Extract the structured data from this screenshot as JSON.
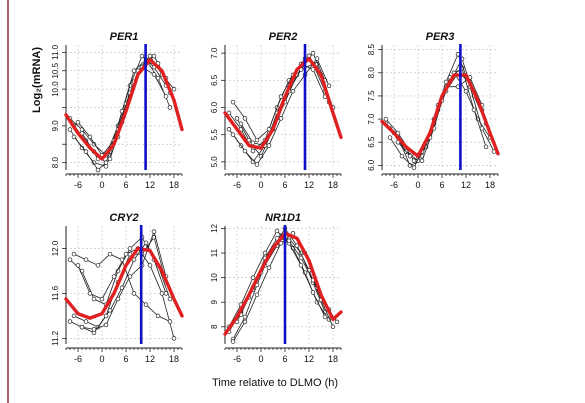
{
  "figure": {
    "ylabel": "Log₂(mRNA)",
    "xlabel": "Time relative to DLMO (h)"
  },
  "colors": {
    "fit_curve": "#e02020",
    "dlmo_line": "#1010c8",
    "individual": "#222222",
    "grid": "#c8c8c8",
    "left_rule": "#b05a6a"
  },
  "chart_data": [
    {
      "type": "line",
      "title": "PER1",
      "x_ticks": [
        -6,
        0,
        6,
        12,
        18
      ],
      "x_tick_labels": [
        "-6",
        "0",
        "6",
        "12",
        "18"
      ],
      "xlim": [
        -9,
        20
      ],
      "ylim": [
        7.8,
        11.2
      ],
      "y_ticks": [
        8.0,
        8.5,
        9.0,
        9.5,
        10.0,
        10.5,
        11.0
      ],
      "y_tick_labels": [
        "8.0",
        "",
        "9.0",
        "",
        "10.0",
        "10.5",
        "11.0"
      ],
      "vline_x": 10.9,
      "fit": {
        "x": [
          -9,
          -6,
          -3,
          0,
          3,
          6,
          9,
          12,
          15,
          18,
          20
        ],
        "y": [
          9.3,
          8.8,
          8.4,
          8.1,
          8.5,
          9.4,
          10.4,
          10.8,
          10.5,
          9.7,
          8.9
        ]
      },
      "individuals": [
        {
          "x": [
            -8,
            -5,
            -2,
            1,
            4,
            7,
            10,
            13,
            16
          ],
          "y": [
            9.2,
            8.9,
            8.5,
            8.2,
            9.0,
            10.1,
            10.9,
            10.6,
            10.1
          ]
        },
        {
          "x": [
            -7,
            -4,
            -1,
            2,
            5,
            8,
            11,
            14,
            17
          ],
          "y": [
            9.0,
            8.6,
            8.1,
            8.3,
            9.4,
            10.5,
            10.8,
            10.3,
            9.5
          ]
        },
        {
          "x": [
            -8,
            -5,
            -2,
            1,
            4,
            7,
            10,
            13,
            16
          ],
          "y": [
            8.9,
            8.4,
            8.0,
            7.9,
            8.7,
            9.8,
            10.6,
            10.9,
            10.3
          ]
        },
        {
          "x": [
            -6,
            -3,
            0,
            3,
            6,
            9,
            12,
            15,
            18
          ],
          "y": [
            9.1,
            8.7,
            8.2,
            8.6,
            9.6,
            10.5,
            10.9,
            10.4,
            10.0
          ]
        },
        {
          "x": [
            -7,
            -4,
            -1,
            2,
            5,
            8,
            11,
            14,
            17
          ],
          "y": [
            8.7,
            8.3,
            7.8,
            8.1,
            9.1,
            10.2,
            10.7,
            10.7,
            9.9
          ]
        },
        {
          "x": [
            -5,
            -2,
            1,
            4,
            7,
            10,
            13,
            16
          ],
          "y": [
            8.8,
            8.3,
            8.0,
            8.9,
            9.9,
            10.6,
            10.4,
            9.8
          ]
        }
      ]
    },
    {
      "type": "line",
      "title": "PER2",
      "x_ticks": [
        -6,
        0,
        6,
        12,
        18
      ],
      "x_tick_labels": [
        "-6",
        "0",
        "6",
        "12",
        "18"
      ],
      "xlim": [
        -9,
        20
      ],
      "ylim": [
        4.85,
        7.15
      ],
      "y_ticks": [
        5.0,
        5.5,
        6.0,
        6.5,
        7.0
      ],
      "y_tick_labels": [
        "5.0",
        "5.5",
        "6.0",
        "6.5",
        "7.0"
      ],
      "vline_x": 11.0,
      "fit": {
        "x": [
          -9,
          -6,
          -3,
          0,
          3,
          6,
          9,
          12,
          15,
          18,
          20
        ],
        "y": [
          5.9,
          5.6,
          5.3,
          5.25,
          5.6,
          6.2,
          6.7,
          6.9,
          6.6,
          5.9,
          5.45
        ]
      },
      "individuals": [
        {
          "x": [
            -8,
            -5,
            -2,
            1,
            4,
            7,
            10,
            13,
            16
          ],
          "y": [
            5.9,
            5.6,
            5.2,
            5.4,
            6.0,
            6.5,
            6.8,
            6.7,
            6.2
          ]
        },
        {
          "x": [
            -7,
            -4,
            -1,
            2,
            5,
            8,
            11,
            14,
            17
          ],
          "y": [
            6.1,
            5.8,
            5.4,
            5.6,
            6.2,
            6.6,
            6.9,
            6.8,
            6.1
          ]
        },
        {
          "x": [
            -8,
            -5,
            -2,
            1,
            4,
            7,
            10,
            13,
            16
          ],
          "y": [
            5.6,
            5.3,
            5.0,
            5.3,
            5.9,
            6.4,
            6.7,
            7.0,
            6.5
          ]
        },
        {
          "x": [
            -6,
            -3,
            0,
            3,
            6,
            9,
            12,
            15,
            18
          ],
          "y": [
            5.8,
            5.4,
            5.1,
            5.6,
            6.1,
            6.6,
            6.95,
            6.6,
            6.0
          ]
        },
        {
          "x": [
            -7,
            -4,
            -1,
            2,
            5,
            8,
            11,
            14,
            17
          ],
          "y": [
            5.5,
            5.2,
            4.95,
            5.3,
            5.8,
            6.3,
            6.6,
            6.9,
            6.4
          ]
        },
        {
          "x": [
            -5,
            -2,
            1,
            4,
            7,
            10,
            13,
            16
          ],
          "y": [
            5.7,
            5.35,
            5.3,
            5.8,
            6.3,
            6.7,
            6.8,
            6.3
          ]
        }
      ]
    },
    {
      "type": "line",
      "title": "PER3",
      "x_ticks": [
        -6,
        0,
        6,
        12,
        18
      ],
      "x_tick_labels": [
        "-6",
        "0",
        "6",
        "12",
        "18"
      ],
      "xlim": [
        -9,
        20
      ],
      "ylim": [
        5.9,
        8.6
      ],
      "y_ticks": [
        6.0,
        6.5,
        7.0,
        7.5,
        8.0,
        8.5
      ],
      "y_tick_labels": [
        "6.0",
        "6.5",
        "7.0",
        "7.5",
        "8.0",
        "8.5"
      ],
      "vline_x": 10.6,
      "fit": {
        "x": [
          -9,
          -6,
          -3,
          0,
          3,
          6,
          9,
          12,
          15,
          18,
          20
        ],
        "y": [
          6.95,
          6.7,
          6.4,
          6.2,
          6.7,
          7.5,
          7.95,
          7.95,
          7.4,
          6.7,
          6.25
        ]
      },
      "individuals": [
        {
          "x": [
            -8,
            -5,
            -2,
            1,
            4,
            7,
            10,
            13,
            16
          ],
          "y": [
            7.0,
            6.7,
            6.3,
            6.2,
            6.9,
            7.6,
            8.0,
            7.8,
            7.2
          ]
        },
        {
          "x": [
            -7,
            -4,
            -1,
            2,
            5,
            8,
            11,
            14,
            17
          ],
          "y": [
            6.8,
            6.5,
            6.1,
            6.4,
            7.2,
            7.8,
            8.3,
            7.5,
            6.9
          ]
        },
        {
          "x": [
            -8,
            -5,
            -2,
            1,
            4,
            7,
            10,
            13,
            16
          ],
          "y": [
            6.9,
            6.6,
            6.0,
            6.1,
            6.8,
            7.7,
            7.7,
            7.9,
            7.3
          ]
        },
        {
          "x": [
            -6,
            -3,
            0,
            3,
            6,
            9,
            12,
            15,
            18
          ],
          "y": [
            6.7,
            6.3,
            6.1,
            6.6,
            7.4,
            8.0,
            7.6,
            7.0,
            6.6
          ]
        },
        {
          "x": [
            -7,
            -4,
            -1,
            2,
            5,
            8,
            11,
            14,
            17
          ],
          "y": [
            6.6,
            6.2,
            5.95,
            6.5,
            7.3,
            7.9,
            8.1,
            7.2,
            6.4
          ]
        },
        {
          "x": [
            -5,
            -2,
            1,
            4,
            7,
            10,
            13,
            16,
            19
          ],
          "y": [
            6.5,
            6.2,
            6.3,
            7.0,
            7.8,
            8.4,
            7.7,
            6.8,
            6.3
          ]
        }
      ]
    },
    {
      "type": "line",
      "title": "CRY2",
      "x_ticks": [
        -6,
        0,
        6,
        12,
        18
      ],
      "x_tick_labels": [
        "-6",
        "0",
        "6",
        "12",
        "18"
      ],
      "xlim": [
        -9,
        20
      ],
      "ylim": [
        11.15,
        12.2
      ],
      "y_ticks": [
        11.2,
        11.6,
        12.0
      ],
      "y_tick_labels": [
        "11.2",
        "11.6",
        "12.0"
      ],
      "vline_x": 9.8,
      "fit": {
        "x": [
          -9,
          -6,
          -3,
          0,
          3,
          6,
          9,
          12,
          15,
          18,
          20
        ],
        "y": [
          11.55,
          11.42,
          11.38,
          11.42,
          11.6,
          11.85,
          12.0,
          11.98,
          11.8,
          11.55,
          11.4
        ]
      },
      "individuals": [
        {
          "x": [
            -8,
            -5,
            -2,
            1,
            4,
            7,
            10,
            13,
            16
          ],
          "y": [
            11.9,
            11.8,
            11.55,
            11.5,
            11.8,
            12.0,
            12.1,
            11.9,
            11.6
          ]
        },
        {
          "x": [
            -7,
            -4,
            -1,
            2,
            5,
            8,
            11,
            14,
            17
          ],
          "y": [
            11.4,
            11.35,
            11.3,
            11.45,
            11.65,
            11.9,
            12.05,
            11.85,
            11.55
          ]
        },
        {
          "x": [
            -8,
            -5,
            -2,
            1,
            4,
            7,
            10,
            13,
            16
          ],
          "y": [
            11.35,
            11.3,
            11.25,
            11.4,
            11.7,
            11.95,
            11.95,
            12.1,
            11.7
          ]
        },
        {
          "x": [
            -6,
            -3,
            0,
            3,
            6,
            9,
            12,
            15,
            18
          ],
          "y": [
            11.85,
            11.6,
            11.55,
            11.75,
            11.95,
            12.0,
            11.85,
            11.6,
            11.2
          ]
        },
        {
          "x": [
            -7,
            -4,
            -1,
            2,
            5,
            8,
            11,
            14,
            17
          ],
          "y": [
            11.95,
            11.9,
            11.85,
            11.95,
            11.9,
            11.6,
            11.5,
            11.4,
            11.35
          ]
        },
        {
          "x": [
            -5,
            -2,
            1,
            4,
            7,
            10,
            13,
            16
          ],
          "y": [
            11.3,
            11.28,
            11.32,
            11.55,
            11.75,
            11.85,
            12.15,
            11.75
          ]
        }
      ]
    },
    {
      "type": "line",
      "title": "NR1D1",
      "x_ticks": [
        -6,
        0,
        6,
        12,
        18
      ],
      "x_tick_labels": [
        "-6",
        "0",
        "6",
        "12",
        "18"
      ],
      "xlim": [
        -9,
        20
      ],
      "ylim": [
        7.3,
        12.1
      ],
      "y_ticks": [
        8,
        9,
        10,
        11,
        12
      ],
      "y_tick_labels": [
        "8",
        "9",
        "10",
        "11",
        "12"
      ],
      "vline_x": 6.0,
      "fit": {
        "x": [
          -9,
          -6,
          -3,
          0,
          3,
          6,
          9,
          12,
          15,
          18,
          20
        ],
        "y": [
          7.7,
          8.4,
          9.3,
          10.3,
          11.2,
          11.8,
          11.6,
          10.7,
          9.3,
          8.3,
          8.6
        ]
      },
      "individuals": [
        {
          "x": [
            -8,
            -5,
            -2,
            1,
            4,
            7,
            10,
            13,
            16
          ],
          "y": [
            7.8,
            8.6,
            9.5,
            10.5,
            11.3,
            11.6,
            11.0,
            9.8,
            8.6
          ]
        },
        {
          "x": [
            -7,
            -4,
            -1,
            2,
            5,
            8,
            11,
            14,
            17
          ],
          "y": [
            7.5,
            8.4,
            9.7,
            10.9,
            11.7,
            11.2,
            10.2,
            9.0,
            8.3
          ]
        },
        {
          "x": [
            -8,
            -5,
            -2,
            1,
            4,
            7,
            10,
            13,
            16
          ],
          "y": [
            8.0,
            8.9,
            10.0,
            11.0,
            11.9,
            11.4,
            10.5,
            9.4,
            8.4
          ]
        },
        {
          "x": [
            -6,
            -3,
            0,
            3,
            6,
            9,
            12,
            15,
            18
          ],
          "y": [
            8.2,
            9.2,
            10.2,
            11.2,
            12.0,
            11.3,
            10.3,
            9.1,
            8.0
          ]
        },
        {
          "x": [
            -7,
            -4,
            -1,
            2,
            5,
            8,
            11,
            14,
            17
          ],
          "y": [
            7.4,
            8.2,
            9.3,
            10.4,
            11.4,
            11.8,
            11.0,
            9.6,
            8.7
          ]
        },
        {
          "x": [
            -5,
            -2,
            1,
            4,
            7,
            10,
            13,
            16,
            19
          ],
          "y": [
            8.5,
            9.6,
            10.8,
            11.6,
            11.5,
            10.8,
            9.9,
            8.9,
            8.2
          ]
        }
      ]
    }
  ]
}
